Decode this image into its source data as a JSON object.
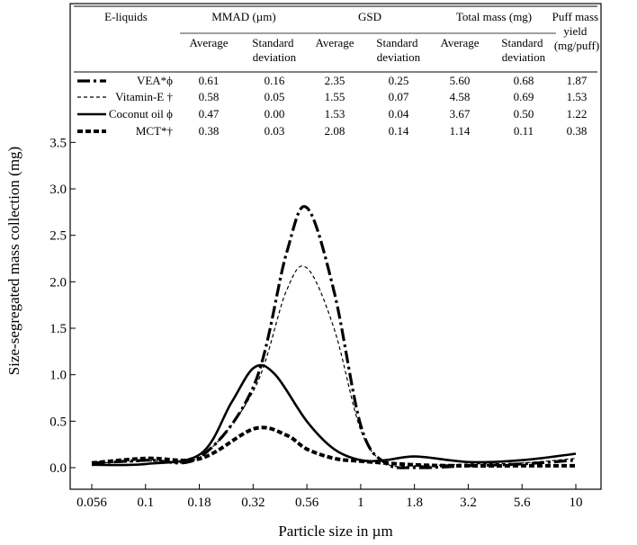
{
  "chart_data": {
    "type": "line",
    "xlabel": "Particle size in µm",
    "ylabel": "Size-segregated mass collection (mg)",
    "x_ticks": [
      "0.056",
      "0.1",
      "0.18",
      "0.32",
      "0.56",
      "1",
      "1.8",
      "3.2",
      "5.6",
      "10"
    ],
    "y_ticks": [
      "0.0",
      "0.5",
      "1.0",
      "1.5",
      "2.0",
      "2.5",
      "3.0",
      "3.5"
    ],
    "ylim": [
      0,
      3.5
    ],
    "series": [
      {
        "name": "VEA*ϕ",
        "style": "dashdot",
        "x": [
          0.056,
          0.1,
          0.18,
          0.32,
          0.45,
          0.56,
          0.75,
          1.0,
          1.3,
          1.8,
          3.2,
          5.6,
          10
        ],
        "values": [
          0.05,
          0.08,
          0.12,
          0.9,
          2.3,
          2.8,
          1.9,
          0.45,
          0.05,
          0.0,
          0.02,
          0.04,
          0.08
        ]
      },
      {
        "name": "Vitamin-E †",
        "style": "thin-dashed",
        "x": [
          0.056,
          0.1,
          0.18,
          0.32,
          0.45,
          0.56,
          0.75,
          1.0,
          1.3,
          1.8,
          3.2,
          5.6,
          10
        ],
        "values": [
          0.05,
          0.07,
          0.12,
          0.85,
          1.9,
          2.15,
          1.5,
          0.4,
          0.05,
          0.02,
          0.04,
          0.05,
          0.1
        ]
      },
      {
        "name": "Coconut oil ϕ",
        "style": "solid",
        "x": [
          0.056,
          0.1,
          0.18,
          0.25,
          0.32,
          0.4,
          0.56,
          0.75,
          1.0,
          1.3,
          1.8,
          3.2,
          5.6,
          10
        ],
        "values": [
          0.03,
          0.04,
          0.15,
          0.7,
          1.08,
          1.0,
          0.5,
          0.2,
          0.08,
          0.08,
          0.12,
          0.06,
          0.08,
          0.15
        ]
      },
      {
        "name": "MCT*†",
        "style": "thick-dashed",
        "x": [
          0.056,
          0.1,
          0.18,
          0.32,
          0.45,
          0.56,
          0.75,
          1.0,
          1.8,
          3.2,
          5.6,
          10
        ],
        "values": [
          0.05,
          0.1,
          0.1,
          0.42,
          0.35,
          0.2,
          0.1,
          0.07,
          0.03,
          0.02,
          0.02,
          0.02
        ]
      }
    ],
    "table": {
      "header_row1": [
        "E-liquids",
        "MMAD (µm)",
        "GSD",
        "Total mass (mg)",
        "Puff mass yield (mg/puff)"
      ],
      "header_row2": [
        "Average",
        "Standard deviation",
        "Average",
        "Standard deviation",
        "Average",
        "Standard deviation"
      ],
      "rows": [
        {
          "label": "VEA*ϕ",
          "values": [
            "0.61",
            "0.16",
            "2.35",
            "0.25",
            "5.60",
            "0.68",
            "1.87"
          ]
        },
        {
          "label": "Vitamin-E †",
          "values": [
            "0.58",
            "0.05",
            "1.55",
            "0.07",
            "4.58",
            "0.69",
            "1.53"
          ]
        },
        {
          "label": "Coconut oil ϕ",
          "values": [
            "0.47",
            "0.00",
            "1.53",
            "0.04",
            "3.67",
            "0.50",
            "1.22"
          ]
        },
        {
          "label": "MCT*†",
          "values": [
            "0.38",
            "0.03",
            "2.08",
            "0.14",
            "1.14",
            "0.11",
            "0.38"
          ]
        }
      ]
    }
  }
}
